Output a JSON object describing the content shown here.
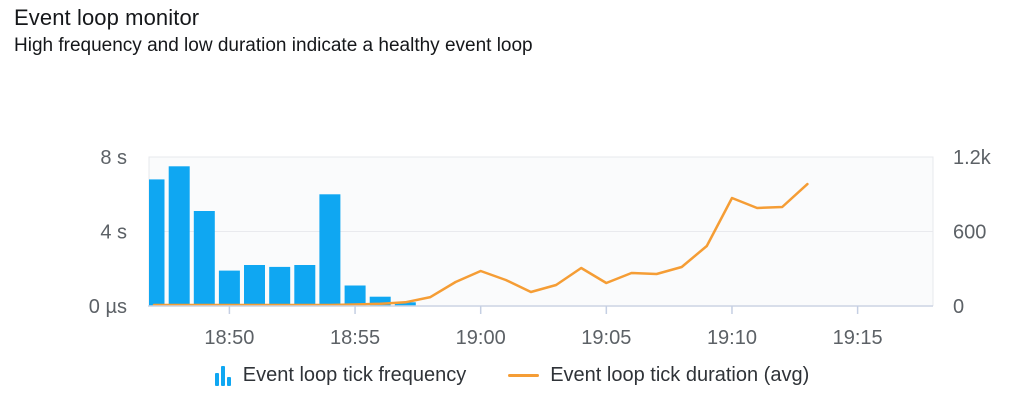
{
  "header": {
    "title": "Event loop monitor",
    "subtitle": "High frequency and low duration indicate a healthy event loop"
  },
  "legend": {
    "frequency_label": "Event loop tick frequency",
    "duration_label": "Event loop tick duration (avg)"
  },
  "colors": {
    "bar": "#0fa7f2",
    "line": "#f59d35",
    "title_text": "#15171a",
    "axis_text": "#5c6166",
    "legend_text": "#2f3338",
    "grid": "#e9eaee",
    "plot_bg": "#fafbfc",
    "plot_border": "#e7e8ec",
    "baseline": "#ccd4e4",
    "tick": "#c5cfe3"
  },
  "chart_data": {
    "type": "combo",
    "title": "Event loop monitor",
    "legend_position": "bottom",
    "grid": "horizontal-only",
    "x_axis": {
      "tick_labels": [
        "18:50",
        "18:55",
        "19:00",
        "19:05",
        "19:10",
        "19:15"
      ],
      "window_start": "18:46.8",
      "window_end": "19:18",
      "minutes_per_point": 1
    },
    "left_axis": {
      "applies_to": "Event loop tick frequency",
      "range": [
        0,
        8
      ],
      "ticks": [
        {
          "value": 0,
          "label": "0 µs"
        },
        {
          "value": 4,
          "label": "4 s"
        },
        {
          "value": 8,
          "label": "8 s"
        }
      ]
    },
    "right_axis": {
      "applies_to": "Event loop tick duration (avg)",
      "range": [
        0,
        1200
      ],
      "ticks": [
        {
          "value": 0,
          "label": "0"
        },
        {
          "value": 600,
          "label": "600"
        },
        {
          "value": 1200,
          "label": "1.2k"
        }
      ]
    },
    "series": [
      {
        "name": "Event loop tick frequency",
        "type": "bar",
        "axis": "left",
        "x": [
          "18:47",
          "18:48",
          "18:49",
          "18:50",
          "18:51",
          "18:52",
          "18:53",
          "18:54",
          "18:55",
          "18:56",
          "18:57"
        ],
        "values": [
          6.8,
          7.5,
          5.1,
          1.9,
          2.2,
          2.1,
          2.2,
          6.0,
          1.1,
          0.5,
          0.2
        ]
      },
      {
        "name": "Event loop tick duration (avg)",
        "type": "line",
        "axis": "right",
        "x": [
          "18:47",
          "18:48",
          "18:49",
          "18:50",
          "18:51",
          "18:52",
          "18:53",
          "18:54",
          "18:55",
          "18:56",
          "18:57",
          "18:58",
          "18:59",
          "19:00",
          "19:01",
          "19:02",
          "19:03",
          "19:04",
          "19:05",
          "19:06",
          "19:07",
          "19:08",
          "19:09",
          "19:10",
          "19:11",
          "19:12",
          "19:13"
        ],
        "values": [
          8,
          8,
          8,
          8,
          8,
          8,
          8,
          8,
          12,
          18,
          30,
          72,
          193,
          282,
          209,
          113,
          169,
          306,
          185,
          266,
          258,
          314,
          483,
          870,
          789,
          797,
          982
        ]
      }
    ]
  }
}
